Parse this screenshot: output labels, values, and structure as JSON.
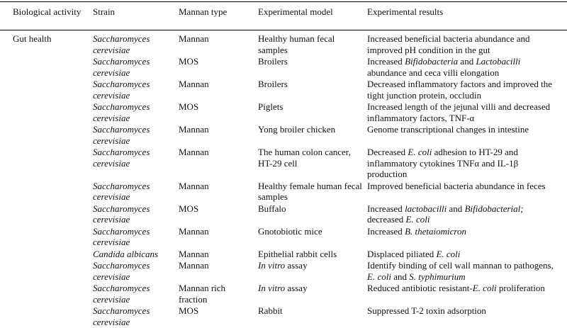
{
  "table": {
    "italic_column": 1,
    "header": [
      "Biological activity",
      "Strain",
      "Mannan type",
      "Experimental model",
      "Experimental results"
    ],
    "rows": [
      [
        "Gut health",
        "Saccharomyces cerevisiae",
        "Mannan",
        "Healthy human fecal samples",
        "Increased beneficial bacteria abundance and improved pH condition in the gut"
      ],
      [
        null,
        "Saccharomyces cerevisiae",
        "MOS",
        "Broilers",
        [
          {
            "text": "Increased "
          },
          {
            "text": "Bifidobacteria",
            "italic": true
          },
          {
            "text": " and "
          },
          {
            "text": "Lactobacilli",
            "italic": true
          },
          {
            "text": " abundance and ceca villi elongation"
          }
        ]
      ],
      [
        null,
        "Saccharomyces cerevisiae",
        "Mannan",
        "Broilers",
        "Decreased inflammatory factors and improved the tight junction protein, occludin"
      ],
      [
        null,
        "Saccharomyces cerevisiae",
        "MOS",
        "Piglets",
        "Increased length of the jejunal villi and decreased inflammatory factors, TNF-α"
      ],
      [
        null,
        "Saccharomyces cerevisiae",
        "Mannan",
        "Yong broiler chicken",
        "Genome transcriptional changes in intestine"
      ],
      [
        null,
        "Saccharomyces cerevisiae",
        "Mannan",
        "The human colon cancer, HT-29 cell",
        [
          {
            "text": "Decreased "
          },
          {
            "text": "E. coli",
            "italic": true
          },
          {
            "text": " adhesion to HT-29 and inflammatory cytokines TNFα and IL-1β production"
          }
        ]
      ],
      [
        null,
        "Saccharomyces cerevisiae",
        "Mannan",
        "Healthy female human fecal samples",
        "Improved beneficial bacteria abundance in feces"
      ],
      [
        null,
        "Saccharomyces cerevisiae",
        "MOS",
        "Buffalo",
        [
          {
            "text": "Increased "
          },
          {
            "text": "lactobacilli",
            "italic": true
          },
          {
            "text": " and "
          },
          {
            "text": "Bifidobacterial;",
            "italic": true
          },
          {
            "text": " decreased "
          },
          {
            "text": "E. coli",
            "italic": true
          }
        ]
      ],
      [
        null,
        "Saccharomyces cerevisiae",
        "Mannan",
        "Gnotobiotic mice",
        [
          {
            "text": "Increased "
          },
          {
            "text": "B. thetaiomicron",
            "italic": true
          }
        ]
      ],
      [
        null,
        "Candida albicans",
        "Mannan",
        "Epithelial rabbit cells",
        [
          {
            "text": "Displaced piliated "
          },
          {
            "text": "E. coli",
            "italic": true
          }
        ]
      ],
      [
        null,
        "Saccharomyces cerevisiae",
        "Mannan",
        [
          {
            "text": "In vitro",
            "italic": true
          },
          {
            "text": " assay"
          }
        ],
        [
          {
            "text": "Identify binding of cell wall mannan to pathogens, "
          },
          {
            "text": "E. coli",
            "italic": true
          },
          {
            "text": " and "
          },
          {
            "text": "S. typhimurium",
            "italic": true
          }
        ]
      ],
      [
        null,
        "Saccharomyces cerevisiae",
        "Mannan rich fraction",
        [
          {
            "text": "In vitro",
            "italic": true
          },
          {
            "text": " assay"
          }
        ],
        [
          {
            "text": "Reduced antibiotic resistant-"
          },
          {
            "text": "E. coli",
            "italic": true
          },
          {
            "text": " proliferation"
          }
        ]
      ],
      [
        null,
        "Saccharomyces cerevisiae",
        "MOS",
        "Rabbit",
        "Suppressed T-2 toxin adsorption"
      ]
    ]
  }
}
